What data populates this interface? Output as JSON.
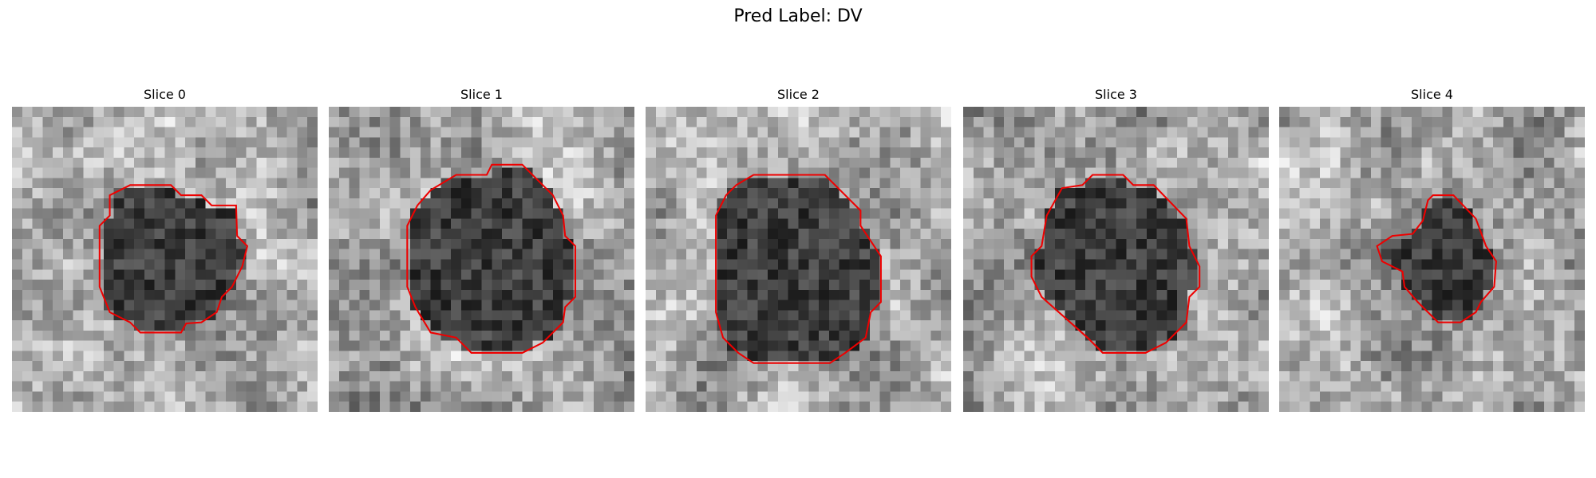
{
  "title": "Pred Label: DV",
  "panels": [
    {
      "title": "Slice 0"
    },
    {
      "title": "Slice 1"
    },
    {
      "title": "Slice 2"
    },
    {
      "title": "Slice 3"
    },
    {
      "title": "Slice 4"
    }
  ]
}
